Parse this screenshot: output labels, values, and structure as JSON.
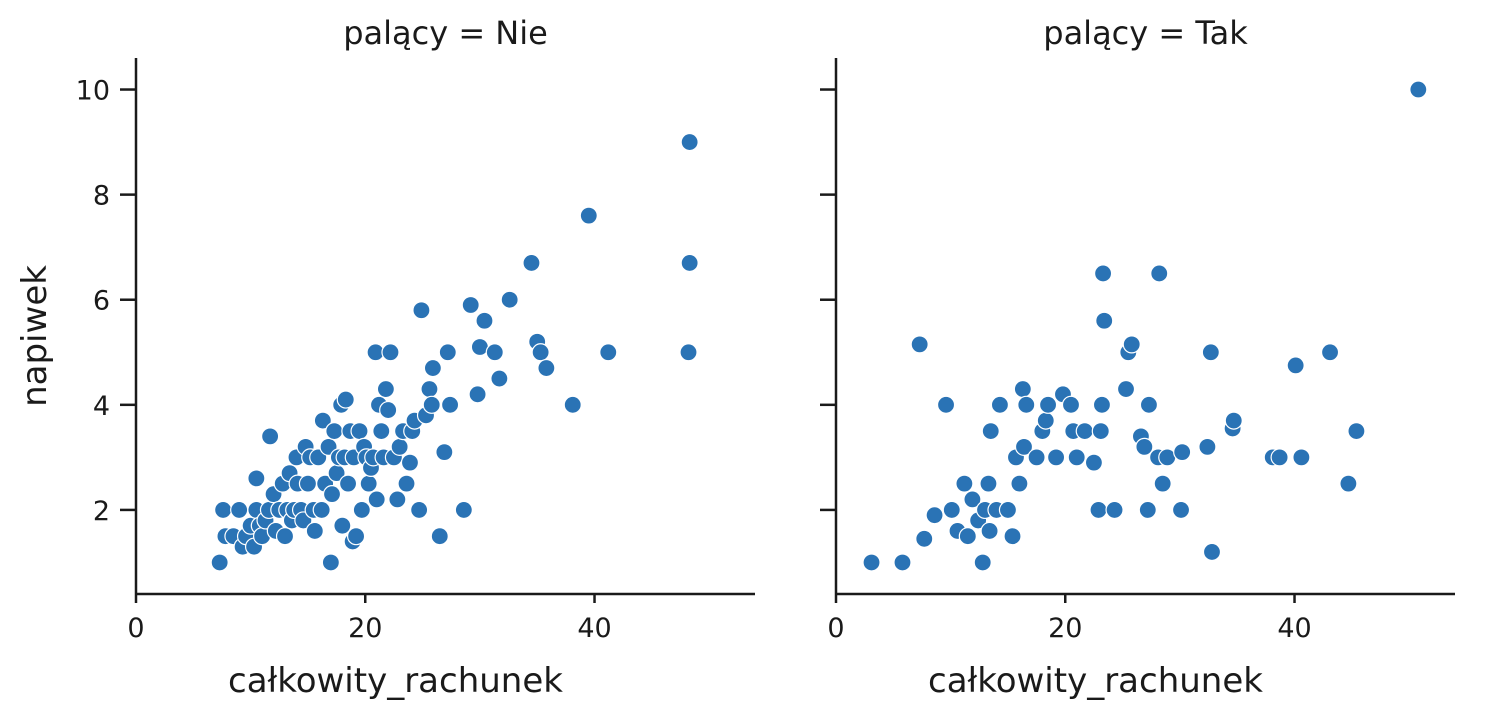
{
  "chart_data": [
    {
      "type": "scatter",
      "title": "palący = Nie",
      "xlabel": "całkowity_rachunek",
      "ylabel": "napiwek",
      "xlim": [
        0,
        54
      ],
      "ylim": [
        0.4,
        10.6
      ],
      "xticks": [
        0,
        20,
        40
      ],
      "yticks": [
        2,
        4,
        6,
        8,
        10
      ],
      "grid": false,
      "color": "#2a73b5",
      "points": [
        [
          7.3,
          1.0
        ],
        [
          7.6,
          2.0
        ],
        [
          7.8,
          1.5
        ],
        [
          8.5,
          1.5
        ],
        [
          9.0,
          2.0
        ],
        [
          9.3,
          1.3
        ],
        [
          9.6,
          1.5
        ],
        [
          10.0,
          1.7
        ],
        [
          10.3,
          1.3
        ],
        [
          10.5,
          2.0
        ],
        [
          10.8,
          1.7
        ],
        [
          10.5,
          2.6
        ],
        [
          11.0,
          1.5
        ],
        [
          11.3,
          1.8
        ],
        [
          11.6,
          2.0
        ],
        [
          11.7,
          3.4
        ],
        [
          12.0,
          2.3
        ],
        [
          12.2,
          1.6
        ],
        [
          12.5,
          2.0
        ],
        [
          12.8,
          2.5
        ],
        [
          13.0,
          1.5
        ],
        [
          13.2,
          2.0
        ],
        [
          13.4,
          2.7
        ],
        [
          13.6,
          1.8
        ],
        [
          13.8,
          2.0
        ],
        [
          14.0,
          3.0
        ],
        [
          14.1,
          2.5
        ],
        [
          14.4,
          2.0
        ],
        [
          14.6,
          1.8
        ],
        [
          14.8,
          3.2
        ],
        [
          15.0,
          2.5
        ],
        [
          15.2,
          3.0
        ],
        [
          15.5,
          2.0
        ],
        [
          15.6,
          1.6
        ],
        [
          15.9,
          3.0
        ],
        [
          16.2,
          2.0
        ],
        [
          16.3,
          3.7
        ],
        [
          16.5,
          2.5
        ],
        [
          16.8,
          3.2
        ],
        [
          17.0,
          1.0
        ],
        [
          17.1,
          2.3
        ],
        [
          17.3,
          3.5
        ],
        [
          17.5,
          2.7
        ],
        [
          17.7,
          3.0
        ],
        [
          17.9,
          4.0
        ],
        [
          18.0,
          1.7
        ],
        [
          18.2,
          3.0
        ],
        [
          18.3,
          4.1
        ],
        [
          18.5,
          2.5
        ],
        [
          18.7,
          3.5
        ],
        [
          18.9,
          1.4
        ],
        [
          19.0,
          3.0
        ],
        [
          19.2,
          1.5
        ],
        [
          19.5,
          3.5
        ],
        [
          19.7,
          2.0
        ],
        [
          19.9,
          3.2
        ],
        [
          20.1,
          3.0
        ],
        [
          20.3,
          2.5
        ],
        [
          20.5,
          2.8
        ],
        [
          20.7,
          3.0
        ],
        [
          20.9,
          5.0
        ],
        [
          21.0,
          2.2
        ],
        [
          21.2,
          4.0
        ],
        [
          21.4,
          3.5
        ],
        [
          21.6,
          3.0
        ],
        [
          21.8,
          4.3
        ],
        [
          22.0,
          3.9
        ],
        [
          22.2,
          5.0
        ],
        [
          22.5,
          3.0
        ],
        [
          22.8,
          2.2
        ],
        [
          23.0,
          3.2
        ],
        [
          23.3,
          3.5
        ],
        [
          23.6,
          2.5
        ],
        [
          23.9,
          2.9
        ],
        [
          24.1,
          3.5
        ],
        [
          24.3,
          3.7
        ],
        [
          24.7,
          2.0
        ],
        [
          24.9,
          5.8
        ],
        [
          25.3,
          3.8
        ],
        [
          25.6,
          4.3
        ],
        [
          25.8,
          4.0
        ],
        [
          25.9,
          4.7
        ],
        [
          26.5,
          1.5
        ],
        [
          26.9,
          3.1
        ],
        [
          27.2,
          5.0
        ],
        [
          27.4,
          4.0
        ],
        [
          28.6,
          2.0
        ],
        [
          29.2,
          5.9
        ],
        [
          29.8,
          4.2
        ],
        [
          30.0,
          5.1
        ],
        [
          30.4,
          5.6
        ],
        [
          31.3,
          5.0
        ],
        [
          31.7,
          4.5
        ],
        [
          32.6,
          6.0
        ],
        [
          34.5,
          6.7
        ],
        [
          35.0,
          5.2
        ],
        [
          35.3,
          5.0
        ],
        [
          35.8,
          4.7
        ],
        [
          38.1,
          4.0
        ],
        [
          39.5,
          7.6
        ],
        [
          41.2,
          5.0
        ],
        [
          48.2,
          5.0
        ],
        [
          48.3,
          6.7
        ],
        [
          48.3,
          9.0
        ]
      ]
    },
    {
      "type": "scatter",
      "title": "palący = Tak",
      "xlabel": "całkowity_rachunek",
      "ylabel": "",
      "xlim": [
        0,
        54
      ],
      "ylim": [
        0.4,
        10.6
      ],
      "xticks": [
        0,
        20,
        40
      ],
      "yticks": [
        2,
        4,
        6,
        8,
        10
      ],
      "grid": false,
      "color": "#2a73b5",
      "points": [
        [
          3.1,
          1.0
        ],
        [
          5.8,
          1.0
        ],
        [
          7.3,
          5.15
        ],
        [
          7.7,
          1.45
        ],
        [
          8.6,
          1.9
        ],
        [
          9.6,
          4.0
        ],
        [
          10.1,
          2.0
        ],
        [
          10.6,
          1.6
        ],
        [
          11.2,
          2.5
        ],
        [
          11.5,
          1.5
        ],
        [
          11.9,
          2.2
        ],
        [
          12.4,
          1.8
        ],
        [
          12.8,
          1.0
        ],
        [
          13.0,
          2.0
        ],
        [
          13.3,
          2.5
        ],
        [
          13.4,
          1.6
        ],
        [
          13.5,
          3.5
        ],
        [
          14.0,
          2.0
        ],
        [
          14.3,
          4.0
        ],
        [
          15.0,
          2.0
        ],
        [
          15.4,
          1.5
        ],
        [
          15.7,
          3.0
        ],
        [
          16.0,
          2.5
        ],
        [
          16.3,
          4.3
        ],
        [
          16.4,
          3.2
        ],
        [
          16.6,
          4.0
        ],
        [
          17.5,
          3.0
        ],
        [
          18.0,
          3.5
        ],
        [
          18.3,
          3.7
        ],
        [
          18.5,
          4.0
        ],
        [
          19.2,
          3.0
        ],
        [
          19.8,
          4.2
        ],
        [
          20.5,
          4.0
        ],
        [
          20.7,
          3.5
        ],
        [
          21.0,
          3.0
        ],
        [
          21.7,
          3.5
        ],
        [
          22.5,
          2.9
        ],
        [
          22.9,
          2.0
        ],
        [
          23.1,
          3.5
        ],
        [
          23.2,
          4.0
        ],
        [
          23.3,
          6.5
        ],
        [
          23.4,
          5.6
        ],
        [
          24.3,
          2.0
        ],
        [
          25.3,
          4.3
        ],
        [
          25.5,
          5.0
        ],
        [
          25.8,
          5.15
        ],
        [
          26.6,
          3.4
        ],
        [
          26.9,
          3.2
        ],
        [
          27.2,
          2.0
        ],
        [
          27.3,
          4.0
        ],
        [
          28.1,
          3.0
        ],
        [
          28.2,
          6.5
        ],
        [
          28.5,
          2.5
        ],
        [
          28.9,
          3.0
        ],
        [
          30.1,
          2.0
        ],
        [
          30.2,
          3.1
        ],
        [
          32.4,
          3.2
        ],
        [
          32.7,
          5.0
        ],
        [
          32.8,
          1.2
        ],
        [
          34.6,
          3.55
        ],
        [
          34.7,
          3.7
        ],
        [
          38.1,
          3.0
        ],
        [
          38.7,
          3.0
        ],
        [
          40.1,
          4.75
        ],
        [
          40.6,
          3.0
        ],
        [
          43.1,
          5.0
        ],
        [
          44.7,
          2.5
        ],
        [
          45.4,
          3.5
        ],
        [
          50.8,
          10.0
        ]
      ]
    }
  ]
}
